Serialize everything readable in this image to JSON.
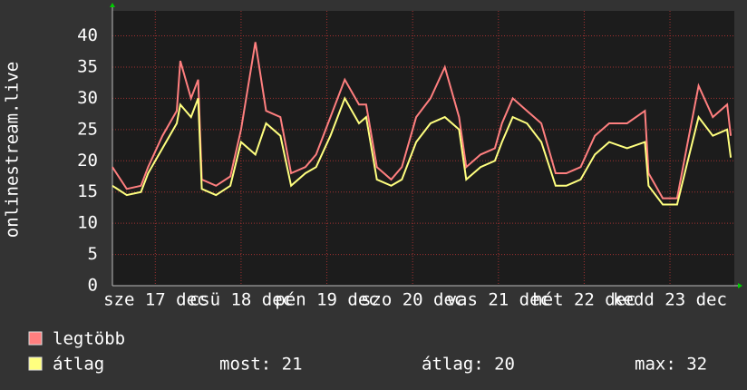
{
  "chart_data": {
    "type": "line",
    "y_label": "onlinestream.live",
    "x": [
      0,
      4,
      8,
      10,
      14,
      18,
      19,
      22,
      24,
      25,
      29,
      33,
      36,
      40,
      43,
      47,
      50,
      54,
      57,
      61,
      65,
      69,
      71,
      74,
      78,
      81,
      85,
      89,
      93,
      97,
      99,
      103,
      107,
      109,
      112,
      116,
      120,
      124,
      127,
      131,
      135,
      139,
      144,
      149,
      150,
      154,
      158,
      161,
      164,
      168,
      172,
      173
    ],
    "series": [
      {
        "name": "legtöbb",
        "color": "#ff7f7f",
        "values": [
          19,
          15.5,
          16,
          19,
          24,
          28,
          36,
          30,
          33,
          17,
          16,
          17.5,
          25,
          39,
          28,
          27,
          18,
          19,
          21,
          27,
          33,
          29,
          29,
          19,
          17,
          19,
          27,
          30,
          35,
          27,
          19,
          21,
          22,
          26,
          30,
          28,
          26,
          18,
          18,
          19,
          24,
          26,
          26,
          28,
          18,
          14,
          14,
          23,
          32,
          27,
          29,
          24
        ]
      },
      {
        "name": "átlag",
        "color": "#ffff7f",
        "values": [
          16,
          14.5,
          15,
          18,
          22,
          26,
          29,
          27,
          30,
          15.5,
          14.5,
          16,
          23,
          21,
          26,
          24,
          16,
          18,
          19,
          24,
          30,
          26,
          27,
          17,
          16,
          17,
          23,
          26,
          27,
          25,
          17,
          19,
          20,
          23,
          27,
          26,
          23,
          16,
          16,
          17,
          21,
          23,
          22,
          23,
          16,
          13,
          13,
          20,
          27,
          24,
          25,
          20.5
        ]
      }
    ],
    "stats": [
      "most: 21",
      "átlag: 20",
      "max: 32"
    ],
    "xlim": [
      0,
      174
    ],
    "xticks": [
      {
        "value": 12,
        "label": "sze 17 dec"
      },
      {
        "value": 36,
        "label": "csü 18 dec"
      },
      {
        "value": 60,
        "label": "pén 19 dec"
      },
      {
        "value": 84,
        "label": "szo 20 dec"
      },
      {
        "value": 108,
        "label": "vas 21 dec"
      },
      {
        "value": 132,
        "label": "hét 22 dec"
      },
      {
        "value": 156,
        "label": "kedd 23 dec"
      }
    ],
    "ylim": [
      0,
      44
    ],
    "yticks": [
      0,
      5,
      10,
      15,
      20,
      25,
      30,
      35,
      40
    ],
    "grid": true
  }
}
